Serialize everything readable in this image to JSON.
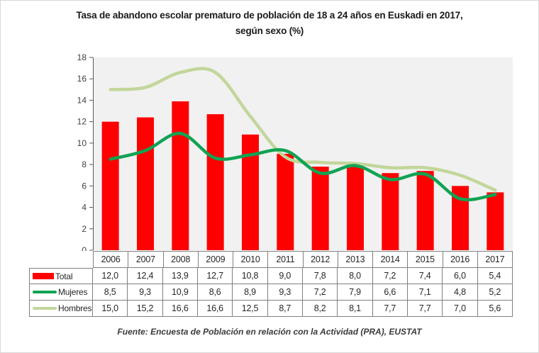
{
  "title": {
    "line1": "Tasa de abandono escolar prematuro de población de 18 a 24 años en Euskadi en 2017,",
    "line2": "según sexo (%)"
  },
  "source": "Fuente: Encuesta de Población en relación con la Actividad  (PRA), EUSTAT",
  "chart_data": {
    "type": "bar+line",
    "title": "Tasa de abandono escolar prematuro de población de 18 a 24 años en Euskadi en 2017, según sexo (%)",
    "categories": [
      "2006",
      "2007",
      "2008",
      "2009",
      "2010",
      "2011",
      "2012",
      "2013",
      "2014",
      "2015",
      "2016",
      "2017"
    ],
    "series": [
      {
        "name": "Total",
        "type": "bar",
        "color": "#fe0000",
        "values": [
          12.0,
          12.4,
          13.9,
          12.7,
          10.8,
          9.0,
          7.8,
          8.0,
          7.2,
          7.4,
          6.0,
          5.4
        ]
      },
      {
        "name": "Mujeres",
        "type": "line",
        "color": "#10a353",
        "values": [
          8.5,
          9.3,
          10.9,
          8.6,
          8.9,
          9.3,
          7.2,
          7.9,
          6.6,
          7.1,
          4.8,
          5.2
        ]
      },
      {
        "name": "Hombres",
        "type": "line",
        "color": "#c3d69b",
        "values": [
          15.0,
          15.2,
          16.6,
          16.6,
          12.5,
          8.7,
          8.2,
          8.1,
          7.7,
          7.7,
          7.0,
          5.6
        ]
      }
    ],
    "ylim": [
      0,
      18
    ],
    "yticks": [
      0,
      2,
      4,
      6,
      8,
      10,
      12,
      14,
      16,
      18
    ],
    "grid": false,
    "plot_bg": "#f1f1f1",
    "axis_color": "#595959",
    "text_color": "#404040",
    "legend_position": "table-left",
    "decimal_separator": ","
  }
}
